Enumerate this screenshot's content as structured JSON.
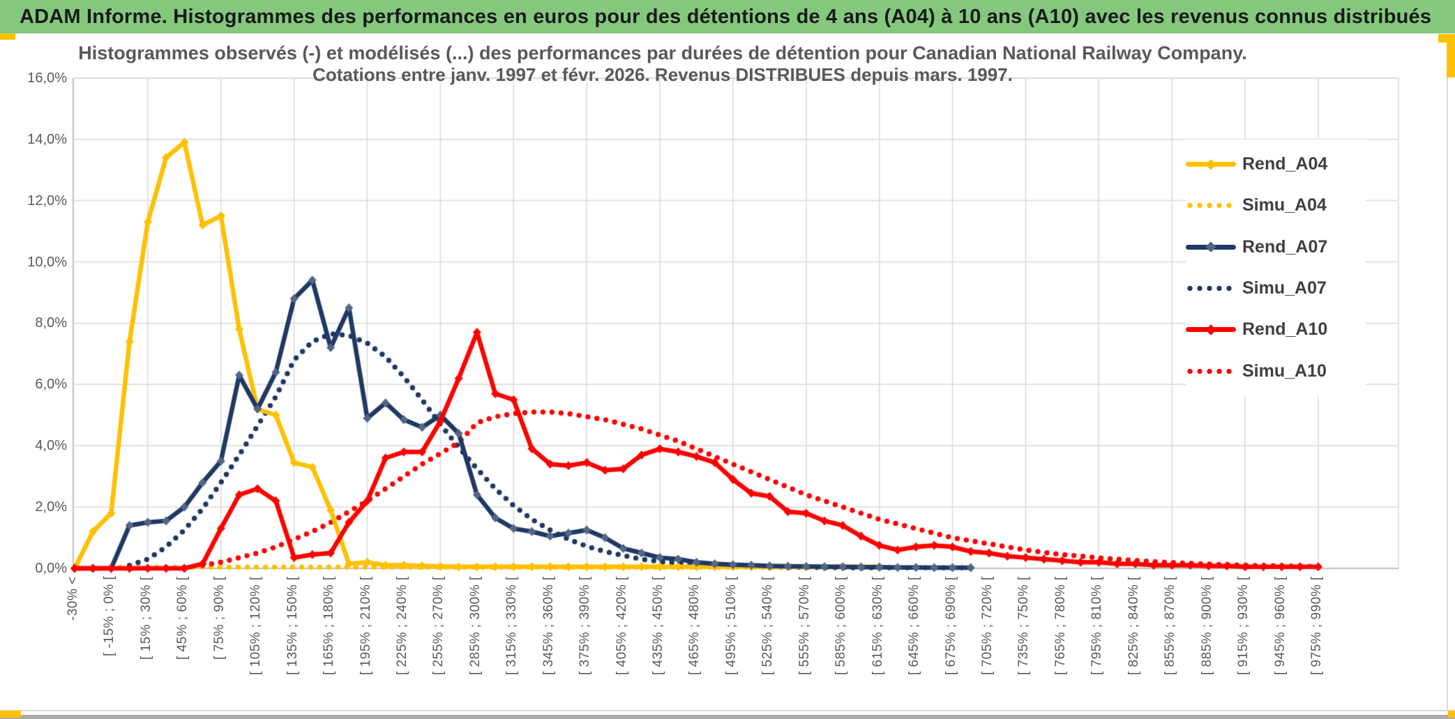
{
  "window": {
    "title": "ADAM Informe. Histogrammes des performances en euros pour des détentions de 4 ans (A04) à 10 ans (A10) avec les revenus connus distribués",
    "titlebar_color": "#84C87E",
    "accent_color": "#FFC000",
    "border_color": "#D9D9D9",
    "bottombar_color": "#ABABAB"
  },
  "chart_data": {
    "type": "line",
    "title_line1": "Histogrammes observés (-) et modélisés (...) des performances par durées de détention pour Canadian National Railway Company.",
    "title_line2": "Cotations entre janv. 1997 et févr. 2026. Revenus DISTRIBUES depuis mars. 1997.",
    "ylabel": "",
    "xlabel": "",
    "ylim": [
      0,
      16
    ],
    "y_tick_step": 2,
    "y_ticks": [
      "0,0%",
      "2,0%",
      "4,0%",
      "6,0%",
      "8,0%",
      "10,0%",
      "12,0%",
      "14,0%",
      "16,0%"
    ],
    "grid": true,
    "grid_color": "#D9D9D9",
    "axis_color": "#BFBFBF",
    "tick_label_color": "#595959",
    "legend_position": "right-inside",
    "categories": [
      "-30% <",
      "",
      "[ -15% ; 0% [",
      "",
      "[ 15% ; 30% [",
      "",
      "[ 45% ; 60% [",
      "",
      "[ 75% ; 90% [",
      "",
      "[ 105% ; 120% [",
      "",
      "[ 135% ; 150% [",
      "",
      "[ 165% ; 180% [",
      "",
      "[ 195% ; 210% [",
      "",
      "[ 225% ; 240% [",
      "",
      "[ 255% ; 270% [",
      "",
      "[ 285% ; 300% [",
      "",
      "[ 315% ; 330% [",
      "",
      "[ 345% ; 360% [",
      "",
      "[ 375% ; 390% [",
      "",
      "[ 405% ; 420% [",
      "",
      "[ 435% ; 450% [",
      "",
      "[ 465% ; 480% [",
      "",
      "[ 495% ; 510% [",
      "",
      "[ 525% ; 540% [",
      "",
      "[ 555% ; 570% [",
      "",
      "[ 585% ; 600% [",
      "",
      "[ 615% ; 630% [",
      "",
      "[ 645% ; 660% [",
      "",
      "[ 675% ; 690% [",
      "",
      "[ 705% ; 720% [",
      "",
      "[ 735% ; 750% [",
      "",
      "[ 765% ; 780% [",
      "",
      "[ 795% ; 810% [",
      "",
      "[ 825% ; 840% [",
      "",
      "[ 855% ; 870% [",
      "",
      "[ 885% ; 900% [",
      "",
      "[ 915% ; 930% [",
      "",
      "[ 945% ; 960% [",
      "",
      "[ 975% ; 990% ["
    ],
    "series": [
      {
        "name": "Rend_A04",
        "color": "#FFC000",
        "marker_color": "#FFC000",
        "style": "solid",
        "values": [
          0,
          1.2,
          1.8,
          7.4,
          11.3,
          13.4,
          13.9,
          11.2,
          11.5,
          7.8,
          5.2,
          5.0,
          3.45,
          3.3,
          1.9,
          0.15,
          0.2,
          0.1,
          0.1,
          0.08,
          0.06,
          0.05,
          0.05,
          0.05,
          0.05,
          0.05,
          0.05,
          0.05,
          0.05,
          0.05,
          0.05,
          0.05,
          0.05,
          0.05,
          0.05,
          0.05,
          0.05,
          0.05,
          0.05,
          0.05,
          0.05,
          0.05,
          0.05,
          0.05,
          0.05,
          null,
          null,
          null,
          null,
          null,
          null,
          null,
          null,
          null,
          null,
          null,
          null,
          null,
          null,
          null,
          null,
          null,
          null,
          null,
          null,
          null,
          null,
          null,
          null
        ]
      },
      {
        "name": "Simu_A04",
        "color": "#FFC000",
        "style": "dotted",
        "values": [
          null,
          null,
          0.04,
          0.04,
          0.04,
          0.04,
          0.04,
          0.04,
          0.04,
          0.04,
          0.04,
          0.04,
          0.04,
          0.04,
          0.04,
          0.04,
          0.04,
          0.04,
          0.04,
          0.04,
          0.04,
          0.04,
          0.04,
          0.04,
          0.04,
          0.04,
          0.04,
          0.04,
          0.04,
          0.04,
          0.04,
          0.04,
          0.04,
          0.04,
          0.04,
          0.04,
          0.04,
          0.04,
          0.04,
          0.04,
          0.04,
          0.04,
          0.04,
          0.04,
          0.04,
          null,
          null,
          null,
          null,
          null,
          null,
          null,
          null,
          null,
          null,
          null,
          null,
          null,
          null,
          null,
          null,
          null,
          null,
          null,
          null,
          null,
          null,
          null,
          null
        ]
      },
      {
        "name": "Rend_A07",
        "color": "#1F3864",
        "marker_color": "#546585",
        "style": "solid",
        "values": [
          0,
          0,
          0,
          1.4,
          1.5,
          1.55,
          2.0,
          2.8,
          3.5,
          6.3,
          5.2,
          6.4,
          8.8,
          9.4,
          7.2,
          8.5,
          4.9,
          5.4,
          4.85,
          4.6,
          5.0,
          4.4,
          2.4,
          1.65,
          1.3,
          1.2,
          1.05,
          1.15,
          1.25,
          1.0,
          0.65,
          0.5,
          0.35,
          0.3,
          0.2,
          0.15,
          0.12,
          0.1,
          0.08,
          0.07,
          0.06,
          0.05,
          0.05,
          0.04,
          0.04,
          0.03,
          0.03,
          0.02,
          0.02,
          0.02,
          null,
          null,
          null,
          null,
          null,
          null,
          null,
          null,
          null,
          null,
          null,
          null,
          null,
          null,
          null,
          null,
          null,
          null,
          null
        ]
      },
      {
        "name": "Simu_A07",
        "color": "#1F3864",
        "style": "dotted",
        "values": [
          null,
          null,
          null,
          0.1,
          0.3,
          0.7,
          1.25,
          1.95,
          2.8,
          3.7,
          4.65,
          5.6,
          6.8,
          7.4,
          7.65,
          7.6,
          7.35,
          6.9,
          6.25,
          5.5,
          4.7,
          3.95,
          3.25,
          2.6,
          2.05,
          1.6,
          1.25,
          0.95,
          0.72,
          0.55,
          0.42,
          0.3,
          0.22,
          0.17,
          0.12,
          0.1,
          0.07,
          0.06,
          0.05,
          0.04,
          0.04,
          0.03,
          0.03,
          0.02,
          0.02,
          0.02,
          0.02,
          0.02,
          0.02,
          0.02,
          null,
          null,
          null,
          null,
          null,
          null,
          null,
          null,
          null,
          null,
          null,
          null,
          null,
          null,
          null,
          null,
          null,
          null,
          null
        ]
      },
      {
        "name": "Rend_A10",
        "color": "#FF0000",
        "marker_color": "#FF0000",
        "style": "solid",
        "values": [
          0,
          0,
          0,
          0,
          0,
          0,
          0,
          0.15,
          1.3,
          2.4,
          2.6,
          2.2,
          0.35,
          0.45,
          0.5,
          1.5,
          2.2,
          3.6,
          3.8,
          3.8,
          4.8,
          6.2,
          7.7,
          5.7,
          5.5,
          3.9,
          3.4,
          3.35,
          3.45,
          3.2,
          3.25,
          3.7,
          3.9,
          3.8,
          3.65,
          3.45,
          2.9,
          2.45,
          2.35,
          1.85,
          1.8,
          1.55,
          1.4,
          1.05,
          0.75,
          0.6,
          0.7,
          0.75,
          0.7,
          0.55,
          0.5,
          0.4,
          0.35,
          0.3,
          0.25,
          0.2,
          0.2,
          0.15,
          0.15,
          0.1,
          0.1,
          0.1,
          0.08,
          0.08,
          0.05,
          0.05,
          0.05,
          0.05,
          0.05
        ]
      },
      {
        "name": "Simu_A10",
        "color": "#FF0000",
        "style": "dotted",
        "values": [
          null,
          null,
          null,
          null,
          null,
          null,
          null,
          0.1,
          0.2,
          0.35,
          0.5,
          0.7,
          0.95,
          1.2,
          1.5,
          1.85,
          2.2,
          2.6,
          3.0,
          3.4,
          3.75,
          4.1,
          4.75,
          4.95,
          5.05,
          5.1,
          5.1,
          5.05,
          4.95,
          4.85,
          4.7,
          4.55,
          4.35,
          4.15,
          3.9,
          3.65,
          3.4,
          3.15,
          2.9,
          2.65,
          2.4,
          2.2,
          2.0,
          1.8,
          1.6,
          1.45,
          1.3,
          1.15,
          1.0,
          0.9,
          0.8,
          0.7,
          0.6,
          0.52,
          0.45,
          0.4,
          0.34,
          0.3,
          0.26,
          0.22,
          0.19,
          0.16,
          0.14,
          0.12,
          0.1,
          0.09,
          0.08,
          0.07,
          0.06
        ]
      }
    ]
  }
}
